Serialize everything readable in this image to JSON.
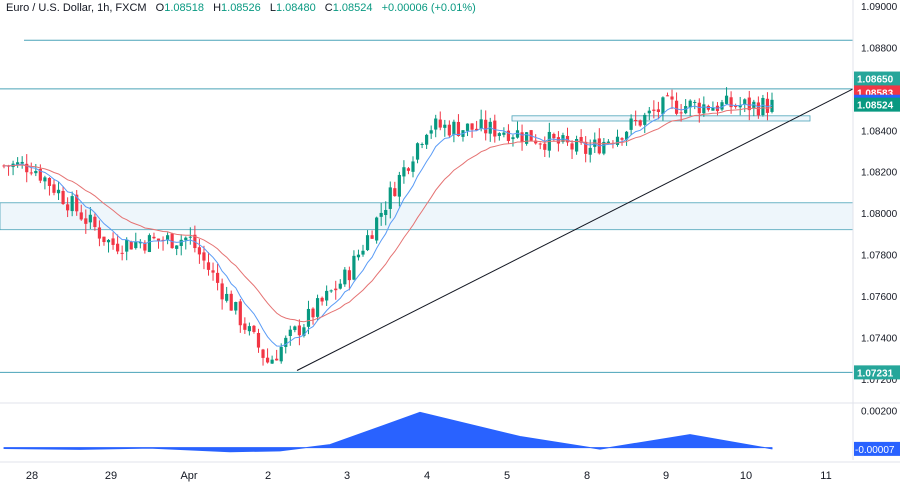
{
  "header": {
    "symbol": "Euro / U.S. Dollar, 1h, FXCM",
    "open_label": "O",
    "open": "1.08518",
    "high_label": "H",
    "high": "1.08526",
    "low_label": "L",
    "low": "1.08480",
    "close_label": "C",
    "close": "1.08524",
    "change": "+0.00006 (+0.01%)"
  },
  "colors": {
    "up": "#089981",
    "down": "#f23645",
    "ema_fast": "#5b9cf6",
    "ema_slow": "#e57373",
    "hline": "#4aa3b8",
    "zone_fill": "#eef6fb",
    "indicator": "#2962ff",
    "trendline": "#131722",
    "grid_text": "#131722"
  },
  "chart_data": {
    "type": "candlestick",
    "title": "Euro / U.S. Dollar, 1h, FXCM",
    "ylim": [
      1.0717,
      1.0901
    ],
    "xlabel": "",
    "ylabel": "",
    "price_ticks": [
      "1.09000",
      "1.08800",
      "1.08600",
      "1.08400",
      "1.08200",
      "1.08000",
      "1.07800",
      "1.07600",
      "1.07400",
      "1.07200"
    ],
    "x_ticks": [
      "28",
      "29",
      "Apr",
      "2",
      "3",
      "4",
      "5",
      "8",
      "9",
      "10",
      "11"
    ],
    "price_labels": [
      {
        "value": 1.0865,
        "text": "1.08650",
        "color": "#26a69a"
      },
      {
        "value": 1.08583,
        "text": "1.08583",
        "color": "#f23645"
      },
      {
        "value": 1.08538,
        "text": "1.08538",
        "color": "#2962ff"
      },
      {
        "value": 1.08524,
        "text": "1.08524",
        "color": "#089981"
      },
      {
        "value": 1.07231,
        "text": "1.07231",
        "color": "#26a69a"
      }
    ],
    "horizontal_lines": [
      1.08835,
      1.086,
      1.07231
    ],
    "zones": [
      {
        "from": 1.0792,
        "to": 1.0805
      },
      {
        "from": 1.08445,
        "to": 1.0847
      }
    ],
    "trendline": {
      "from": {
        "x": "2",
        "price": 1.0724
      },
      "to": {
        "x": "11",
        "price": 1.086
      }
    },
    "price_path": [
      [
        "28",
        1.0823
      ],
      [
        "29",
        1.0785
      ],
      [
        "Apr",
        1.0788
      ],
      [
        "2",
        1.0728
      ],
      [
        "3",
        1.077
      ],
      [
        "4",
        1.0842
      ],
      [
        "5",
        1.084
      ],
      [
        "8",
        1.083
      ],
      [
        "9",
        1.0852
      ],
      [
        "10",
        1.0852
      ]
    ],
    "indicator": {
      "ticks": [
        "0.00200",
        "0.00000"
      ],
      "last_value": "-0.00007",
      "values": [
        -5e-05,
        -0.0001,
        -3e-05,
        -0.00022,
        -0.00018,
        0.00016,
        0.0019,
        0.0006,
        -8e-05,
        0.0007,
        -7e-05
      ]
    }
  }
}
